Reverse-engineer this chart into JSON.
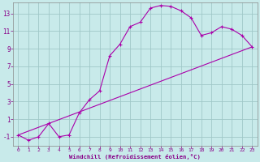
{
  "background_color": "#c8eaea",
  "grid_color": "#a0c8c8",
  "line_color": "#aa00aa",
  "marker_color": "#aa00aa",
  "xlabel": "Windchill (Refroidissement éolien,°C)",
  "xlabel_color": "#880088",
  "tick_color": "#880088",
  "spine_color": "#888888",
  "xlim": [
    -0.5,
    23.5
  ],
  "ylim": [
    -2.0,
    14.2
  ],
  "yticks": [
    -1,
    1,
    3,
    5,
    7,
    9,
    11,
    13
  ],
  "xticks": [
    0,
    1,
    2,
    3,
    4,
    5,
    6,
    7,
    8,
    9,
    10,
    11,
    12,
    13,
    14,
    15,
    16,
    17,
    18,
    19,
    20,
    21,
    22,
    23
  ],
  "curve1_x": [
    0,
    1,
    2,
    3,
    4,
    5,
    6,
    7,
    8,
    9,
    10,
    11,
    12,
    13,
    14,
    15,
    16,
    17,
    18,
    19,
    20,
    21,
    22,
    23
  ],
  "curve1_y": [
    -0.8,
    -1.4,
    -1.0,
    0.5,
    -1.0,
    -0.8,
    1.7,
    3.2,
    4.2,
    8.2,
    9.5,
    11.5,
    12.0,
    13.6,
    13.9,
    13.8,
    13.3,
    12.5,
    10.5,
    10.8,
    11.5,
    11.2,
    10.5,
    9.2
  ],
  "curve2_x": [
    0,
    23
  ],
  "curve2_y": [
    -0.8,
    9.2
  ]
}
